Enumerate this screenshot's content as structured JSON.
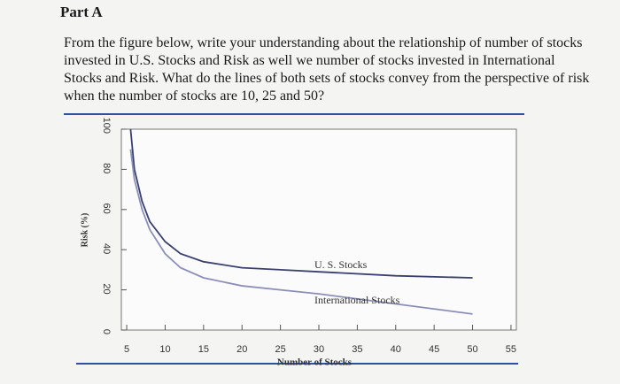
{
  "header": {
    "title": "Part A"
  },
  "question": "From the figure below, write your understanding about the relationship of number of stocks invested in U.S. Stocks and Risk as well we number of stocks invested in International Stocks and Risk. What do the lines of both sets of stocks convey from the perspective of risk when the number of stocks are 10, 25 and 50?",
  "chart_data": {
    "type": "line",
    "x_label": "Number of Stocks",
    "y_label": "Risk (%)",
    "x": [
      5.5,
      6,
      7,
      8,
      10,
      12,
      15,
      20,
      25,
      30,
      40,
      50
    ],
    "series": [
      {
        "name": "U. S. Stocks",
        "color": "#3b3f70",
        "values": [
          100,
          80,
          64,
          54,
          44,
          38,
          34,
          31,
          30,
          29,
          27,
          26
        ]
      },
      {
        "name": "International Stocks",
        "color": "#8b8fb8",
        "values": [
          90,
          75,
          60,
          50,
          38,
          31,
          26,
          22,
          20,
          18,
          13,
          8
        ]
      }
    ],
    "xlim": [
      4.3,
      55.7
    ],
    "ylim": [
      0,
      100
    ],
    "xticks": [
      5,
      10,
      15,
      20,
      25,
      30,
      35,
      40,
      45,
      50,
      55
    ],
    "yticks": [
      0,
      20,
      40,
      60,
      80,
      100
    ]
  }
}
